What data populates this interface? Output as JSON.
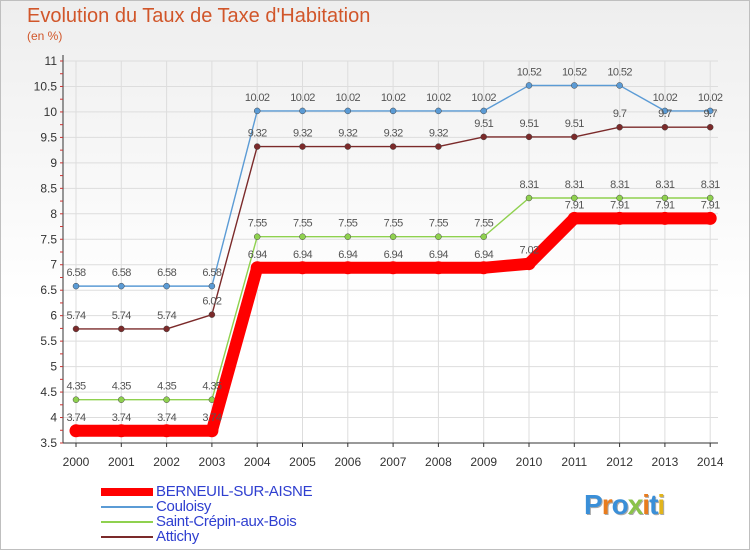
{
  "title": "Evolution du Taux de Taxe d'Habitation",
  "subtitle": "(en %)",
  "logo": {
    "text": "Proxiti",
    "colors": [
      "#3a8fd8",
      "#e87c1e",
      "#3a8fd8",
      "#8bc34a",
      "#e87c1e",
      "#3a8fd8",
      "#e2b41b"
    ]
  },
  "chart_data": {
    "type": "line",
    "title": "Evolution du Taux de Taxe d'Habitation",
    "ylabel": "(en %)",
    "xlabel": "",
    "ylim": [
      3.5,
      11
    ],
    "yticks": [
      3.5,
      4,
      4.5,
      5,
      5.5,
      6,
      6.5,
      7,
      7.5,
      8,
      8.5,
      9,
      9.5,
      10,
      10.5,
      11
    ],
    "ytick_labels": [
      "3.5",
      "4",
      "4.5",
      "5",
      "5.5",
      "6",
      "6.5",
      "7",
      "7.5",
      "8",
      "8.5",
      "9",
      "9.5",
      "10",
      "10.5",
      "11"
    ],
    "categories": [
      "2000",
      "2001",
      "2002",
      "2003",
      "2004",
      "2005",
      "2006",
      "2007",
      "2008",
      "2009",
      "2010",
      "2011",
      "2012",
      "2013",
      "2014"
    ],
    "legend_position": "bottom-left",
    "series": [
      {
        "name": "BERNEUIL-SUR-AISNE",
        "color": "#ff0000",
        "emphasis": true,
        "values": [
          3.74,
          3.74,
          3.74,
          3.74,
          6.94,
          6.94,
          6.94,
          6.94,
          6.94,
          6.94,
          7.02,
          7.91,
          7.91,
          7.91,
          7.91
        ],
        "labels": [
          "3.74",
          "3.74",
          "3.74",
          "3.74",
          "6.94",
          "6.94",
          "6.94",
          "6.94",
          "6.94",
          "6.94",
          "7.02",
          "7.91",
          "7.91",
          "7.91",
          "7.91"
        ]
      },
      {
        "name": "Couloisy",
        "color": "#5b9bd5",
        "values": [
          6.58,
          6.58,
          6.58,
          6.58,
          10.02,
          10.02,
          10.02,
          10.02,
          10.02,
          10.02,
          10.52,
          10.52,
          10.52,
          10.02,
          10.02
        ],
        "labels": [
          "6.58",
          "6.58",
          "6.58",
          "6.58",
          "10.02",
          "10.02",
          "10.02",
          "10.02",
          "10.02",
          "10.02",
          "10.52",
          "10.52",
          "10.52",
          "10.02",
          "10.02"
        ]
      },
      {
        "name": "Saint-Crépin-aux-Bois",
        "color": "#8fd14f",
        "values": [
          4.35,
          4.35,
          4.35,
          4.35,
          7.55,
          7.55,
          7.55,
          7.55,
          7.55,
          7.55,
          8.31,
          8.31,
          8.31,
          8.31,
          8.31
        ],
        "labels": [
          "4.35",
          "4.35",
          "4.35",
          "4.35",
          "7.55",
          "7.55",
          "7.55",
          "7.55",
          "7.55",
          "7.55",
          "8.31",
          "8.31",
          "8.31",
          "8.31",
          "8.31"
        ]
      },
      {
        "name": "Attichy",
        "color": "#7b2a2a",
        "values": [
          5.74,
          5.74,
          5.74,
          6.02,
          9.32,
          9.32,
          9.32,
          9.32,
          9.32,
          9.51,
          9.51,
          9.51,
          9.7,
          9.7,
          9.7
        ],
        "labels": [
          "5.74",
          "5.74",
          "5.74",
          "6.02",
          "9.32",
          "9.32",
          "9.32",
          "9.32",
          "9.32",
          "9.51",
          "9.51",
          "9.51",
          "9.7",
          "9.7",
          "9.7"
        ]
      }
    ]
  }
}
